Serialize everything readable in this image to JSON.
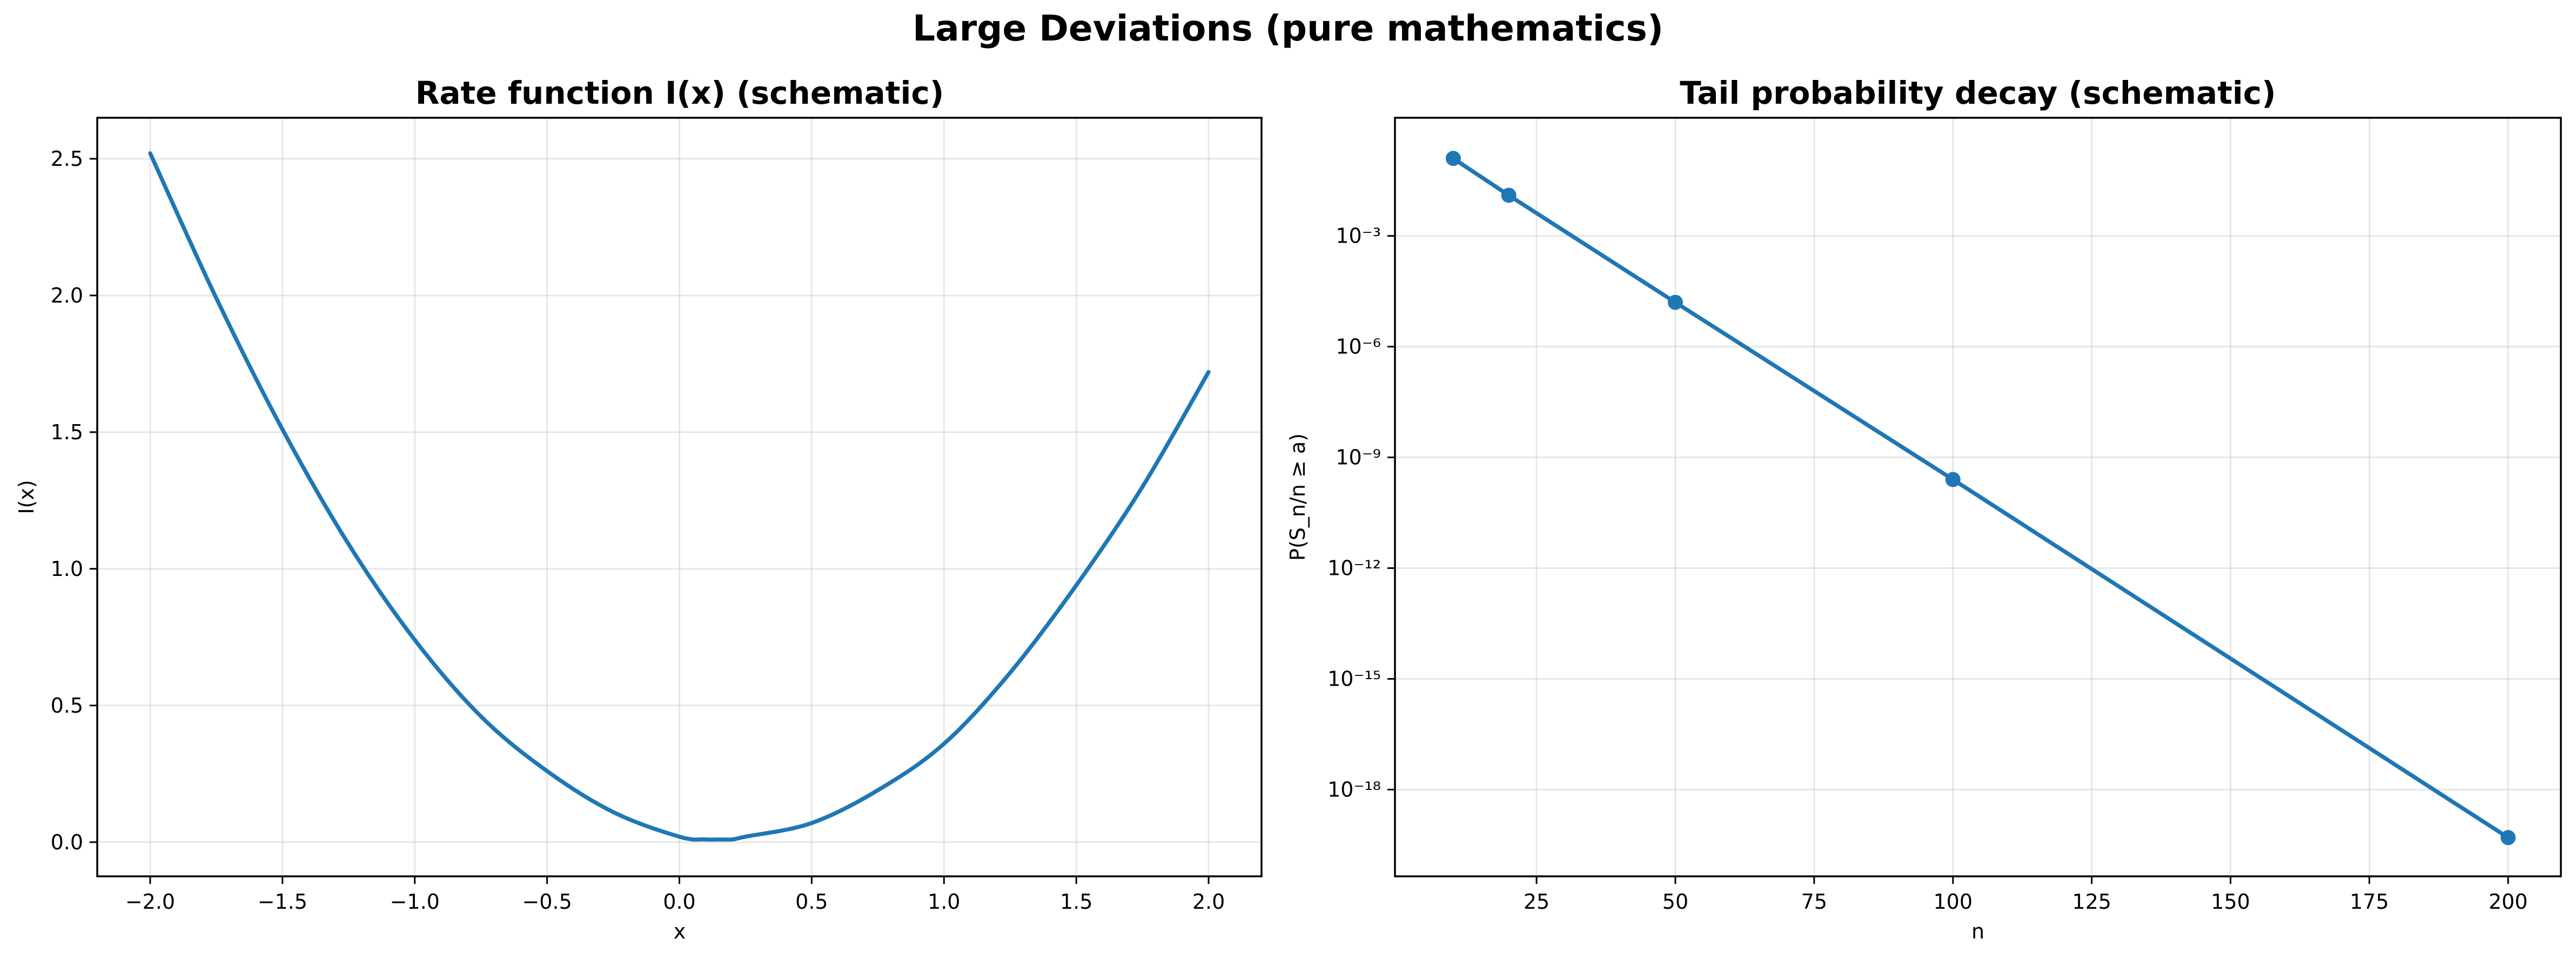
{
  "figure": {
    "title": "Large Deviations (pure mathematics)"
  },
  "chart_data": [
    {
      "type": "line",
      "title": "Rate function I(x) (schematic)",
      "xlabel": "x",
      "ylabel": "I(x)",
      "xlim": [
        -2.2,
        2.2
      ],
      "ylim": [
        -0.125,
        2.65
      ],
      "xticks": [
        -2.0,
        -1.5,
        -1.0,
        -0.5,
        0.0,
        0.5,
        1.0,
        1.5,
        2.0
      ],
      "xtick_labels": [
        "−2.0",
        "−1.5",
        "−1.0",
        "−0.5",
        "0.0",
        "0.5",
        "1.0",
        "1.5",
        "2.0"
      ],
      "yticks": [
        0.0,
        0.5,
        1.0,
        1.5,
        2.0,
        2.5
      ],
      "ytick_labels": [
        "0.0",
        "0.5",
        "1.0",
        "1.5",
        "2.0",
        "2.5"
      ],
      "grid": true,
      "color": "#1f77b4",
      "series": [
        {
          "x": [
            -2.0,
            -1.75,
            -1.5,
            -1.25,
            -1.0,
            -0.75,
            -0.5,
            -0.25,
            0.0,
            0.1,
            0.15,
            0.2,
            0.25,
            0.5,
            0.75,
            1.0,
            1.25,
            1.5,
            1.75,
            2.0
          ],
          "y": [
            2.52,
            1.99,
            1.51,
            1.09,
            0.74,
            0.46,
            0.26,
            0.11,
            0.02,
            0.01,
            0.01,
            0.01,
            0.02,
            0.07,
            0.19,
            0.36,
            0.62,
            0.94,
            1.3,
            1.72
          ]
        }
      ]
    },
    {
      "type": "line",
      "title": "Tail probability decay (schematic)",
      "xlabel": "n",
      "ylabel": "P(S_n/n ≥ a)",
      "yscale": "log",
      "xlim": [
        -0.5,
        209.5
      ],
      "ylim_log10": [
        -20.35,
        0.2
      ],
      "xticks": [
        25,
        50,
        75,
        100,
        125,
        150,
        175,
        200
      ],
      "xtick_labels": [
        "25",
        "50",
        "75",
        "100",
        "125",
        "150",
        "175",
        "200"
      ],
      "yticks_log10": [
        -18,
        -15,
        -12,
        -9,
        -6,
        -3
      ],
      "ytick_labels": [
        "10⁻¹⁸",
        "10⁻¹⁵",
        "10⁻¹²",
        "10⁻⁹",
        "10⁻⁶",
        "10⁻³"
      ],
      "grid": true,
      "color": "#1f77b4",
      "markers": true,
      "series": [
        {
          "x": [
            10,
            20,
            50,
            100,
            200
          ],
          "y_log10": [
            -0.9,
            -1.9,
            -4.8,
            -9.6,
            -19.3
          ]
        }
      ]
    }
  ]
}
